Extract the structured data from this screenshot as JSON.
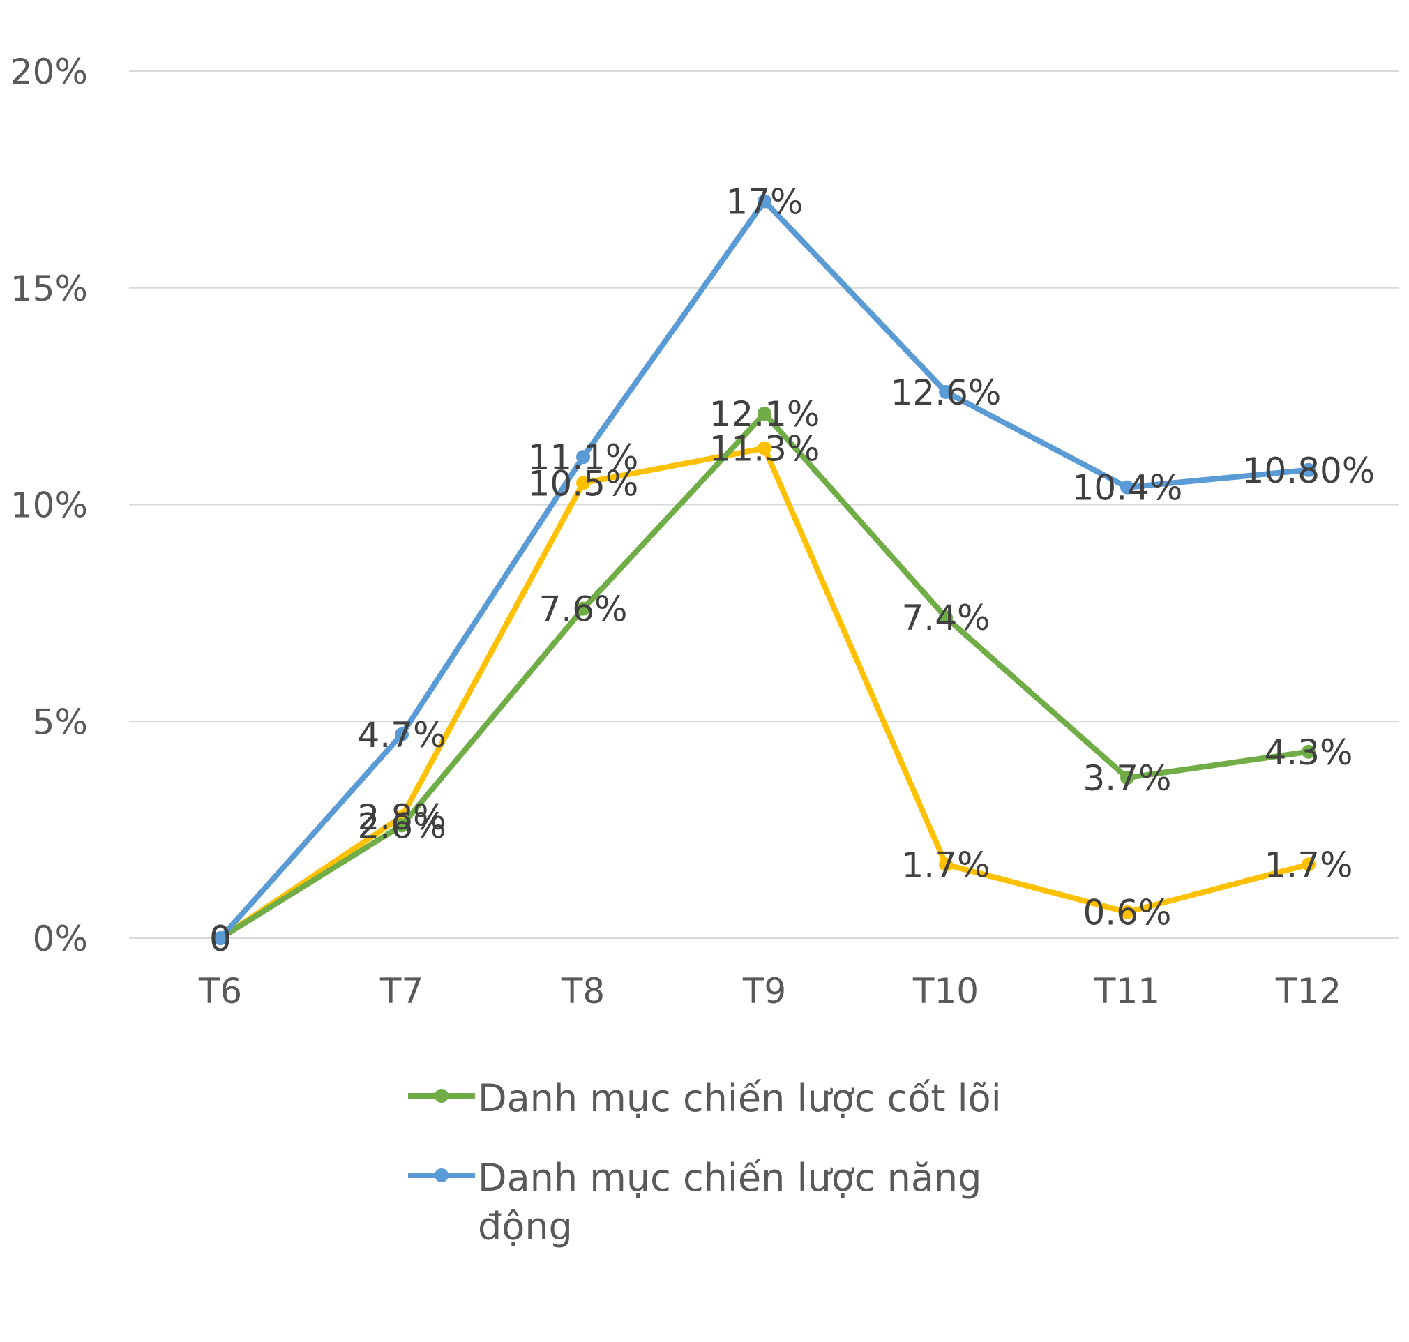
{
  "chart_data": {
    "type": "line",
    "title": "",
    "xlabel": "",
    "ylabel": "",
    "categories": [
      "T6",
      "T7",
      "T8",
      "T9",
      "T10",
      "T11",
      "T12"
    ],
    "ylim": [
      0,
      20
    ],
    "yticks": [
      "0%",
      "5%",
      "10%",
      "15%",
      "20%"
    ],
    "grid": true,
    "legend_position": "bottom",
    "series": [
      {
        "name": "Danh mục chiến lược cốt lõi",
        "color": "#70ad47",
        "in_legend": true,
        "values": [
          0,
          2.6,
          7.6,
          12.1,
          7.4,
          3.7,
          4.3
        ],
        "labels": [
          "0",
          "2.6%",
          "7.6%",
          "12.1%",
          "7.4%",
          "3.7%",
          "4.3%"
        ]
      },
      {
        "name": "Danh mục chiến lược năng động",
        "color": "#5b9bd5",
        "in_legend": true,
        "values": [
          0,
          4.7,
          11.1,
          17,
          12.6,
          10.4,
          10.8
        ],
        "labels": [
          "0",
          "4.7%",
          "11.1%",
          "17%",
          "12.6%",
          "10.4%",
          "10.80%"
        ]
      },
      {
        "name": "",
        "color": "#ffc000",
        "in_legend": false,
        "values": [
          0,
          2.8,
          10.5,
          11.3,
          1.7,
          0.6,
          1.7
        ],
        "labels": [
          "0",
          "2.8%",
          "10.5%",
          "11.3%",
          "1.7%",
          "0.6%",
          "1.7%"
        ]
      }
    ]
  }
}
